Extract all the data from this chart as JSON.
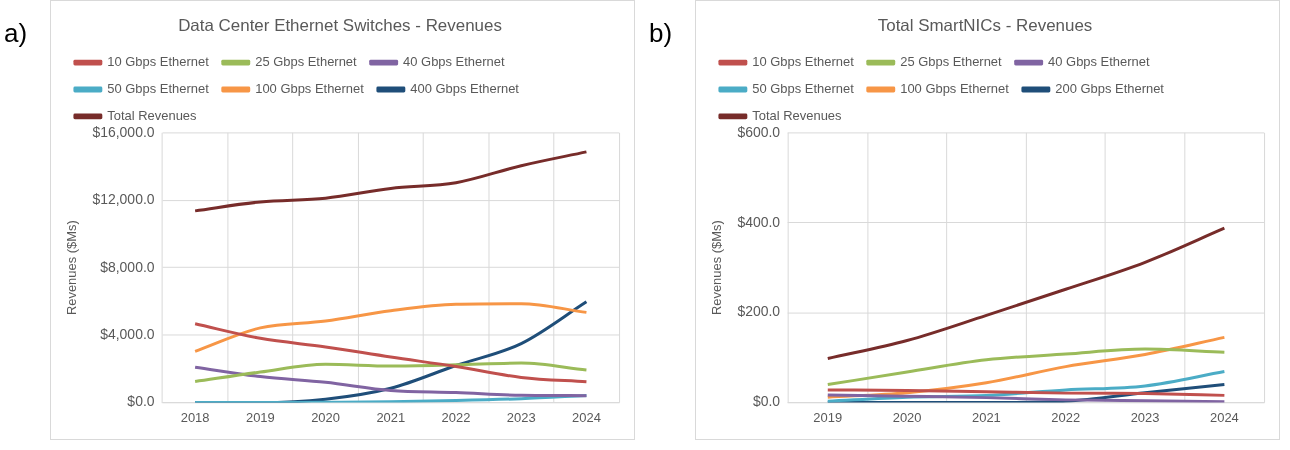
{
  "chart_data": [
    {
      "type": "line",
      "title": "Data Center Ethernet Switches - Revenues",
      "ylabel": "Revenues ($Ms)",
      "annotations": [
        "a)"
      ],
      "categories": [
        "2018",
        "2019",
        "2020",
        "2021",
        "2022",
        "2023",
        "2024"
      ],
      "series": [
        {
          "name": "10 Gbps Ethernet",
          "color": "#c0504d",
          "values": [
            4670,
            3810,
            3300,
            2700,
            2140,
            1490,
            1230
          ]
        },
        {
          "name": "25 Gbps Ethernet",
          "color": "#9bbb59",
          "values": [
            1250,
            1810,
            2270,
            2170,
            2240,
            2340,
            1930
          ]
        },
        {
          "name": "40 Gbps Ethernet",
          "color": "#8064a2",
          "values": [
            2100,
            1540,
            1200,
            720,
            600,
            430,
            410
          ]
        },
        {
          "name": "50 Gbps Ethernet",
          "color": "#4bacc6",
          "values": [
            0,
            0,
            20,
            50,
            120,
            230,
            420
          ]
        },
        {
          "name": "100 Gbps Ethernet",
          "color": "#f79646",
          "values": [
            3040,
            4430,
            4840,
            5450,
            5830,
            5860,
            5350
          ]
        },
        {
          "name": "400 Gbps Ethernet",
          "color": "#1f4e79",
          "values": [
            0,
            0,
            200,
            850,
            2200,
            3500,
            5980
          ]
        },
        {
          "name": "Total Revenues",
          "color": "#772c2a",
          "values": [
            11370,
            11900,
            12120,
            12700,
            13040,
            14050,
            14870
          ]
        }
      ],
      "ylim": [
        0,
        16000
      ],
      "yticks": [
        {
          "value": 0,
          "label": "$0.0"
        },
        {
          "value": 4000,
          "label": "$4,000.0"
        },
        {
          "value": 8000,
          "label": "$8,000.0"
        },
        {
          "value": 12000,
          "label": "$12,000.0"
        },
        {
          "value": 16000,
          "label": "$16,000.0"
        }
      ],
      "grid": true,
      "legend": "top",
      "marker": "none"
    },
    {
      "type": "line",
      "title": "Total SmartNICs - Revenues",
      "ylabel": "Revenues ($Ms)",
      "annotations": [
        "b)"
      ],
      "categories": [
        "2019",
        "2020",
        "2021",
        "2022",
        "2023",
        "2024"
      ],
      "series": [
        {
          "name": "10 Gbps Ethernet",
          "color": "#c0504d",
          "values": [
            28,
            27,
            24,
            21,
            20,
            16
          ]
        },
        {
          "name": "25 Gbps Ethernet",
          "color": "#9bbb59",
          "values": [
            40,
            68,
            95,
            108,
            119,
            112
          ]
        },
        {
          "name": "40 Gbps Ethernet",
          "color": "#8064a2",
          "values": [
            17,
            14,
            11,
            6,
            4,
            2
          ]
        },
        {
          "name": "50 Gbps Ethernet",
          "color": "#4bacc6",
          "values": [
            3,
            12,
            16,
            28,
            37,
            69
          ]
        },
        {
          "name": "100 Gbps Ethernet",
          "color": "#f79646",
          "values": [
            12,
            22,
            44,
            80,
            107,
            145
          ]
        },
        {
          "name": "200 Gbps Ethernet",
          "color": "#1f4e79",
          "values": [
            0,
            0,
            0,
            3,
            22,
            40
          ]
        },
        {
          "name": "Total Revenues",
          "color": "#772c2a",
          "values": [
            98,
            138,
            194,
            252,
            312,
            388
          ]
        }
      ],
      "ylim": [
        0,
        600
      ],
      "yticks": [
        {
          "value": 0,
          "label": "$0.0"
        },
        {
          "value": 200,
          "label": "$200.0"
        },
        {
          "value": 400,
          "label": "$400.0"
        },
        {
          "value": 600,
          "label": "$600.0"
        }
      ],
      "grid": true,
      "legend": "top",
      "marker": "none"
    }
  ]
}
